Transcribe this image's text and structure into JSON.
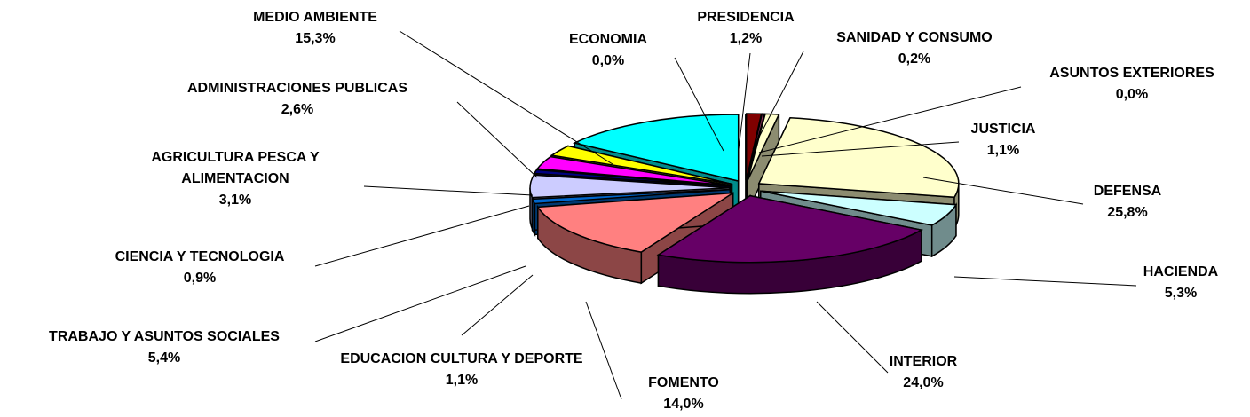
{
  "chart_data": {
    "type": "pie",
    "categories": [
      "PRESIDENCIA",
      "SANIDAD Y CONSUMO",
      "ASUNTOS EXTERIORES",
      "JUSTICIA",
      "DEFENSA",
      "HACIENDA",
      "INTERIOR",
      "FOMENTO",
      "EDUCACION CULTURA Y DEPORTE",
      "TRABAJO Y ASUNTOS SOCIALES",
      "CIENCIA Y TECNOLOGIA",
      "AGRICULTURA PESCA Y ALIMENTACION",
      "ADMINISTRACIONES PUBLICAS",
      "MEDIO AMBIENTE",
      "ECONOMIA"
    ],
    "values": [
      1.2,
      0.2,
      0.0,
      1.1,
      25.8,
      5.3,
      24.0,
      14.0,
      1.1,
      5.4,
      0.9,
      3.1,
      2.6,
      15.3,
      0.0
    ],
    "value_labels": [
      "1,2%",
      "0,2%",
      "0,0%",
      "1,1%",
      "25,8%",
      "5,3%",
      "24,0%",
      "14,0%",
      "1,1%",
      "5,4%",
      "0,9%",
      "3,1%",
      "2,6%",
      "15,3%",
      "0,0%"
    ],
    "colors": [
      "#800000",
      "#993366",
      "#666699",
      "#ffffcc",
      "#ffffcc",
      "#ccffff",
      "#660066",
      "#ff8080",
      "#0066cc",
      "#ccccff",
      "#000080",
      "#ff00ff",
      "#ffff00",
      "#00ffff",
      "#008080"
    ]
  }
}
